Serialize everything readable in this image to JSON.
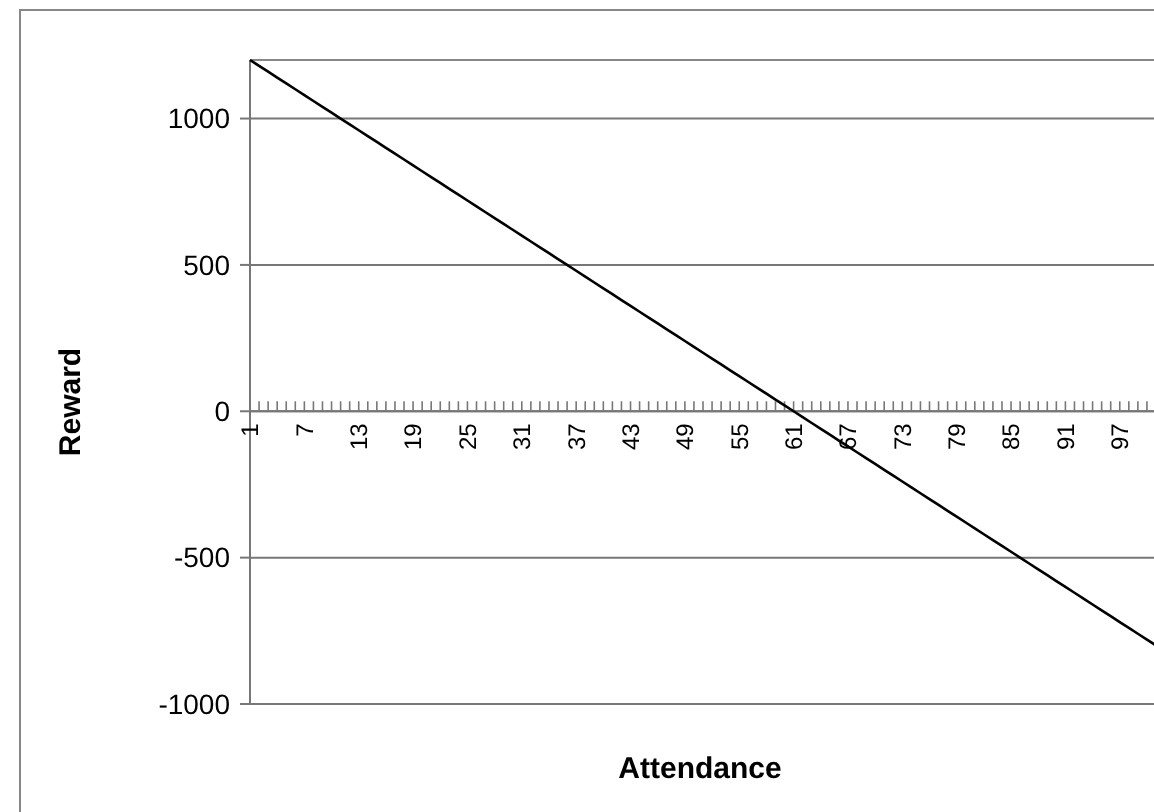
{
  "chart_data": {
    "type": "line",
    "xlabel": "Attendance",
    "ylabel": "Reward",
    "categories": [
      "1",
      null,
      null,
      null,
      null,
      null,
      "7",
      null,
      null,
      null,
      null,
      null,
      "13",
      null,
      null,
      null,
      null,
      null,
      "19",
      null,
      null,
      null,
      null,
      null,
      "25",
      null,
      null,
      null,
      null,
      null,
      "31",
      null,
      null,
      null,
      null,
      null,
      "37",
      null,
      null,
      null,
      null,
      null,
      "43",
      null,
      null,
      null,
      null,
      null,
      "49",
      null,
      null,
      null,
      null,
      null,
      "55",
      null,
      null,
      null,
      null,
      null,
      "61",
      null,
      null,
      null,
      null,
      null,
      "67",
      null,
      null,
      null,
      null,
      null,
      "73",
      null,
      null,
      null,
      null,
      null,
      "79",
      null,
      null,
      null,
      null,
      null,
      "85",
      null,
      null,
      null,
      null,
      null,
      "91",
      null,
      null,
      null,
      null,
      null,
      "97",
      null,
      null,
      null,
      null
    ],
    "series": [
      {
        "color": "#000000",
        "values": [
          1200,
          1180,
          1160,
          1140,
          1120,
          1100,
          1080,
          1060,
          1040,
          1020,
          1000,
          980,
          960,
          940,
          920,
          900,
          880,
          860,
          840,
          820,
          800,
          780,
          760,
          740,
          720,
          700,
          680,
          660,
          640,
          620,
          600,
          580,
          560,
          540,
          520,
          500,
          480,
          460,
          440,
          420,
          400,
          380,
          360,
          340,
          320,
          300,
          280,
          260,
          240,
          220,
          200,
          180,
          160,
          140,
          120,
          100,
          80,
          60,
          40,
          20,
          0,
          -20,
          -40,
          -60,
          -80,
          -100,
          -120,
          -140,
          -160,
          -180,
          -200,
          -220,
          -240,
          -260,
          -280,
          -300,
          -320,
          -340,
          -360,
          -380,
          -400,
          -420,
          -440,
          -460,
          -480,
          -500,
          -520,
          -540,
          -560,
          -580,
          -600,
          -620,
          -640,
          -660,
          -680,
          -700,
          -720,
          -740,
          -760,
          -780,
          -800
        ]
      }
    ],
    "ylim": [
      -1000,
      1200
    ],
    "yticks": [
      1000,
      500,
      0,
      -500,
      -1000
    ],
    "grid": "y",
    "marker": "none"
  }
}
